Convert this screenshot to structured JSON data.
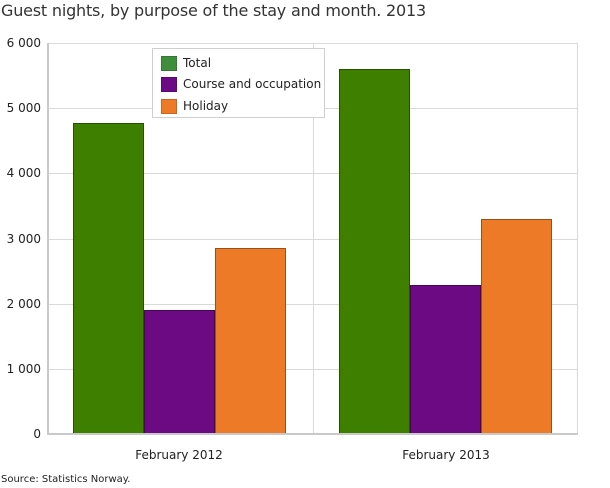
{
  "title": "Guest nights, by purpose of the stay and month. 2013",
  "source": "Source: Statistics Norway.",
  "colors": {
    "total": "#3f7f00",
    "course": "#6b0a83",
    "holiday": "#ec7a26",
    "legend_total": "#3e8e3e"
  },
  "yticks": [
    "0",
    "1 000",
    "2 000",
    "3 000",
    "4 000",
    "5 000",
    "6 000"
  ],
  "legend": {
    "items": [
      {
        "label": "Total"
      },
      {
        "label": "Course and occupation"
      },
      {
        "label": "Holiday"
      }
    ]
  },
  "xlabels": [
    "February 2012",
    "February 2013"
  ],
  "chart_data": {
    "type": "bar",
    "title": "Guest nights, by purpose of the stay and month. 2013",
    "xlabel": "",
    "ylabel": "",
    "categories": [
      "February 2012",
      "February 2013"
    ],
    "series": [
      {
        "name": "Total",
        "values": [
          4770,
          5600
        ]
      },
      {
        "name": "Course and occupation",
        "values": [
          1900,
          2280
        ]
      },
      {
        "name": "Holiday",
        "values": [
          2850,
          3300
        ]
      }
    ],
    "ylim": [
      0,
      6000
    ],
    "yticks": [
      0,
      1000,
      2000,
      3000,
      4000,
      5000,
      6000
    ],
    "grid": true,
    "legend_position": "top-left inside plot",
    "source": "Source: Statistics Norway."
  }
}
